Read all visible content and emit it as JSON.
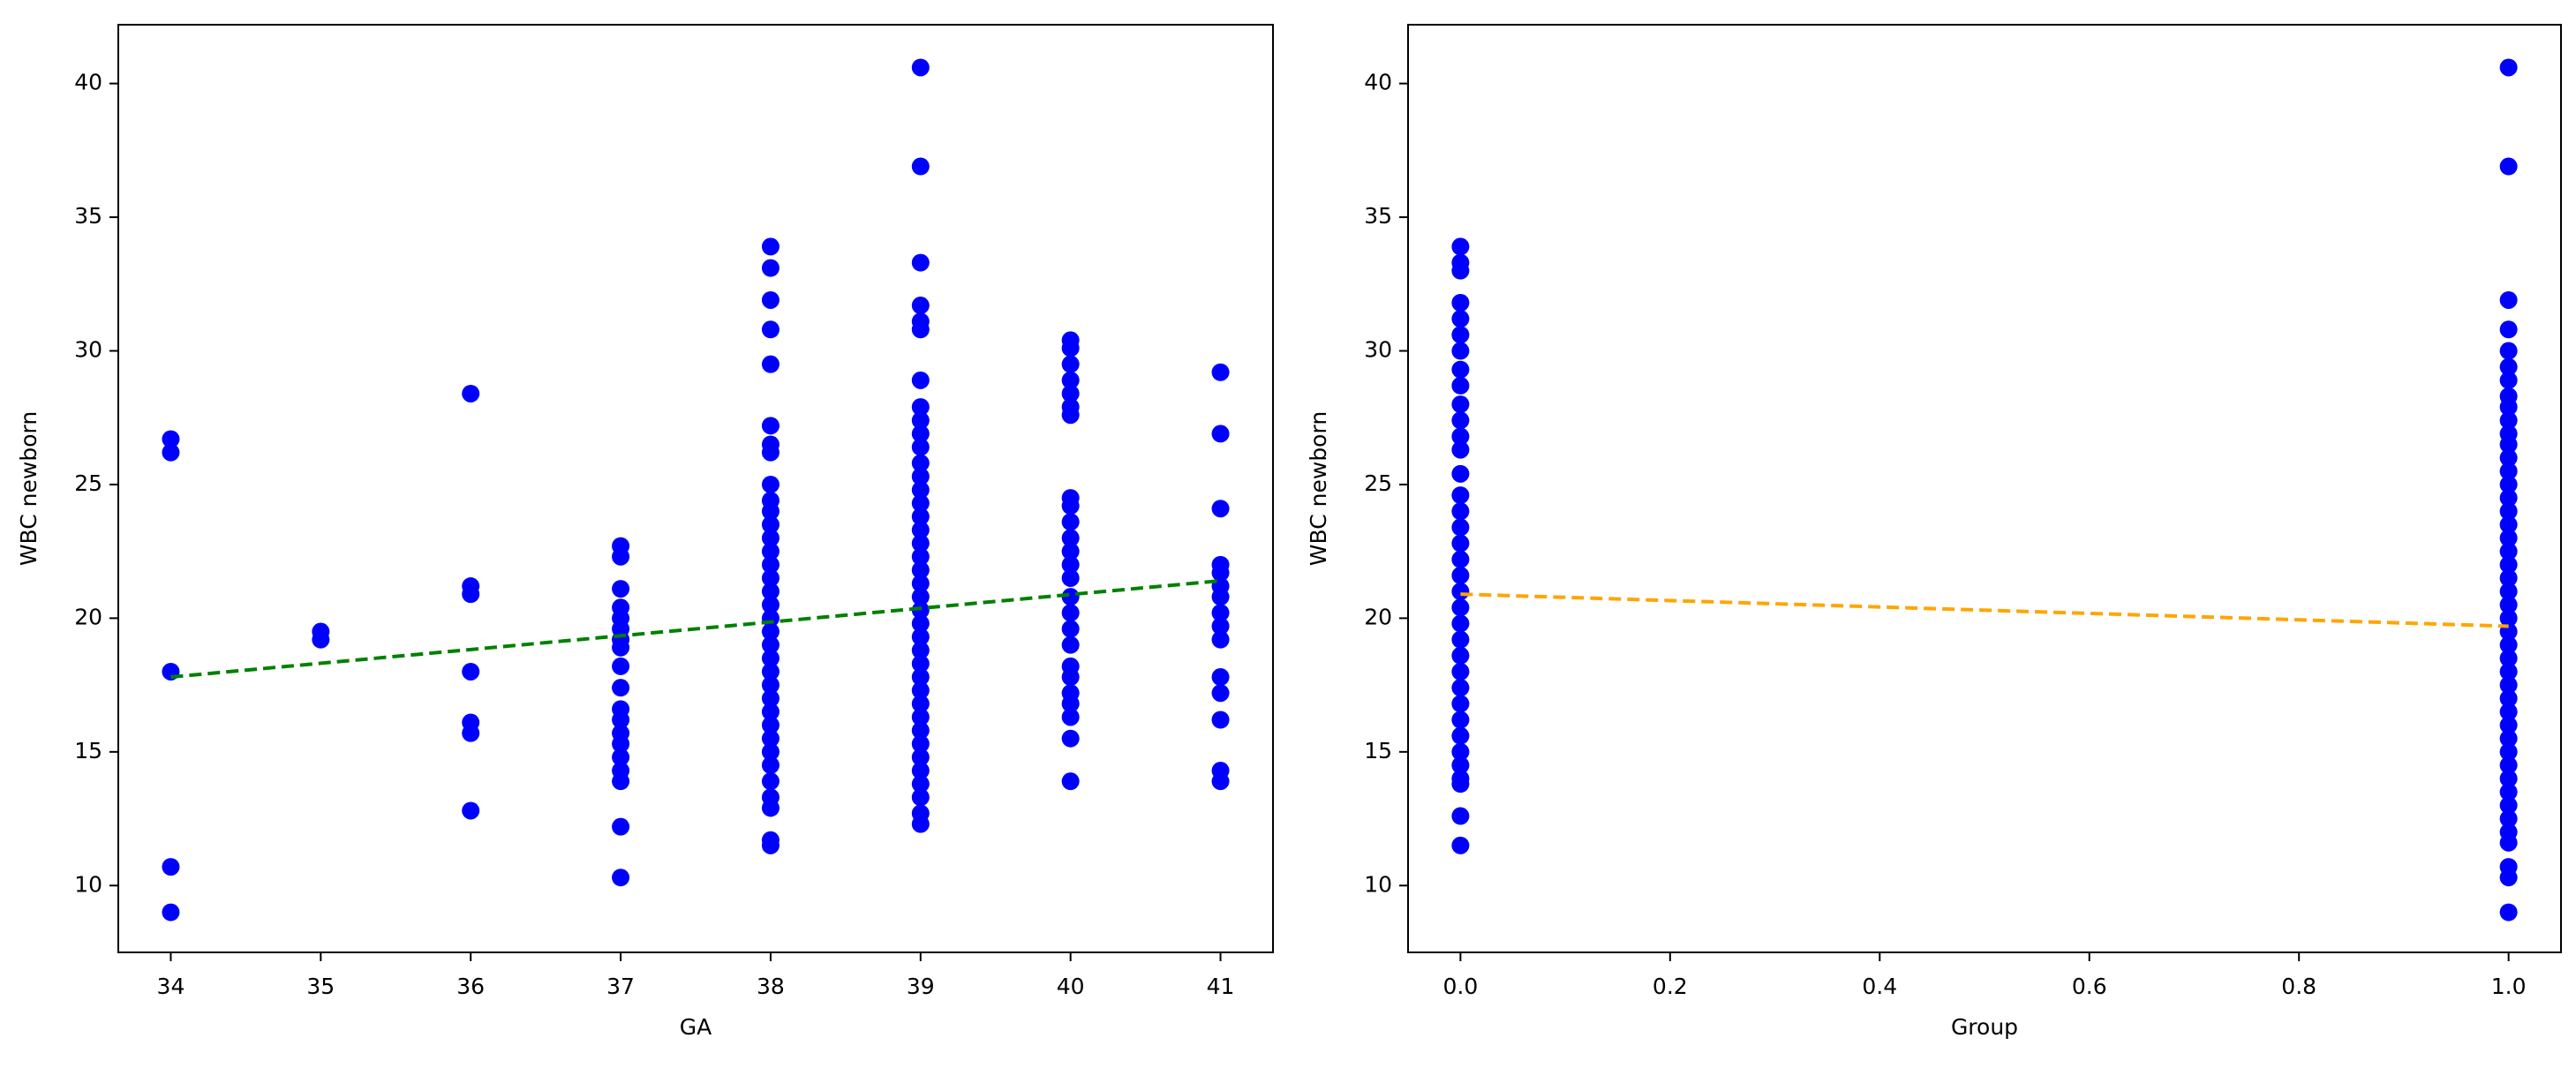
{
  "chart_data": [
    {
      "type": "scatter",
      "x_label": "GA",
      "y_label": "WBC newborn",
      "xlim": [
        33.65,
        41.35
      ],
      "ylim": [
        7.5,
        42.2
      ],
      "xticks": [
        34,
        35,
        36,
        37,
        38,
        39,
        40,
        41
      ],
      "yticks": [
        10,
        15,
        20,
        25,
        30,
        35,
        40
      ],
      "series": [
        {
          "color": "#0000ff",
          "mark": "points",
          "x": [
            34,
            34,
            34,
            34,
            34,
            35,
            35,
            36,
            36,
            36,
            36,
            36,
            36,
            36,
            37,
            37,
            37,
            37,
            37,
            37,
            37,
            37,
            37,
            37,
            37,
            37,
            37,
            37,
            37,
            37,
            37,
            37,
            37,
            38,
            38,
            38,
            38,
            38,
            38,
            38,
            38,
            38,
            38,
            38,
            38,
            38,
            38,
            38,
            38,
            38,
            38,
            38,
            38,
            38,
            38,
            38,
            38,
            38,
            38,
            38,
            38,
            38,
            38,
            38,
            38,
            38,
            38,
            38,
            39,
            39,
            39,
            39,
            39,
            39,
            39,
            39,
            39,
            39,
            39,
            39,
            39,
            39,
            39,
            39,
            39,
            39,
            39,
            39,
            39,
            39,
            39,
            39,
            39,
            39,
            39,
            39,
            39,
            39,
            39,
            39,
            39,
            39,
            39,
            39,
            39,
            39,
            39,
            40,
            40,
            40,
            40,
            40,
            40,
            40,
            40,
            40,
            40,
            40,
            40,
            40,
            40,
            40,
            40,
            40,
            40,
            40,
            40,
            40,
            40,
            40,
            40,
            40,
            41,
            41,
            41,
            41,
            41,
            41,
            41,
            41,
            41,
            41,
            41,
            41,
            41,
            41,
            41
          ],
          "values": [
            26.7,
            26.2,
            18.0,
            10.7,
            9.0,
            19.5,
            19.2,
            28.4,
            21.2,
            20.9,
            18.0,
            16.1,
            15.7,
            12.8,
            22.7,
            22.3,
            21.1,
            20.4,
            20.0,
            19.6,
            19.2,
            18.9,
            18.2,
            17.4,
            16.6,
            16.2,
            15.7,
            15.3,
            14.8,
            14.3,
            13.9,
            12.2,
            10.3,
            33.9,
            33.1,
            31.9,
            30.8,
            29.5,
            27.2,
            26.5,
            26.2,
            25.0,
            24.4,
            24.0,
            23.5,
            23.0,
            22.5,
            22.0,
            21.5,
            21.0,
            20.5,
            20.0,
            19.5,
            19.0,
            18.5,
            18.0,
            17.5,
            17.0,
            16.5,
            16.0,
            15.5,
            15.0,
            14.5,
            13.9,
            13.3,
            12.9,
            11.7,
            11.5,
            40.6,
            36.9,
            33.3,
            31.7,
            31.1,
            30.8,
            28.9,
            27.9,
            27.4,
            26.9,
            26.4,
            25.8,
            25.3,
            24.8,
            24.3,
            23.8,
            23.3,
            22.8,
            22.3,
            21.8,
            21.3,
            20.8,
            20.3,
            19.8,
            19.3,
            18.8,
            18.3,
            17.8,
            17.3,
            16.8,
            16.3,
            15.8,
            15.3,
            14.8,
            14.3,
            13.8,
            13.3,
            12.7,
            12.3,
            30.4,
            30.1,
            29.5,
            28.9,
            28.4,
            27.9,
            27.6,
            24.5,
            24.2,
            23.6,
            23.0,
            22.5,
            22.0,
            21.5,
            20.8,
            20.2,
            19.6,
            19.0,
            18.2,
            17.8,
            17.2,
            16.8,
            16.3,
            15.5,
            13.9,
            29.2,
            26.9,
            24.1,
            22.0,
            21.7,
            21.2,
            20.8,
            20.2,
            19.7,
            19.2,
            17.8,
            17.2,
            16.2,
            14.3,
            13.9
          ]
        },
        {
          "color": "#008000",
          "mark": "dashed-line",
          "x": [
            34,
            41
          ],
          "values": [
            17.8,
            21.4
          ]
        }
      ]
    },
    {
      "type": "scatter",
      "x_label": "Group",
      "y_label": "WBC newborn",
      "xlim": [
        -0.05,
        1.05
      ],
      "ylim": [
        7.5,
        42.2
      ],
      "xticks": [
        {
          "value": 0,
          "label": "0.0"
        },
        0.2,
        0.4,
        0.6,
        0.8,
        {
          "value": 1,
          "label": "1.0"
        }
      ],
      "yticks": [
        10,
        15,
        20,
        25,
        30,
        35,
        40
      ],
      "series": [
        {
          "color": "#0000ff",
          "mark": "points",
          "x": [
            0,
            0,
            0,
            0,
            0,
            0,
            0,
            0,
            0,
            0,
            0,
            0,
            0,
            0,
            0,
            0,
            0,
            0,
            0,
            0,
            0,
            0,
            0,
            0,
            0,
            0,
            0,
            0,
            0,
            0,
            0,
            0,
            0,
            0,
            0,
            0,
            1,
            1,
            1,
            1,
            1,
            1,
            1,
            1,
            1,
            1,
            1,
            1,
            1,
            1,
            1,
            1,
            1,
            1,
            1,
            1,
            1,
            1,
            1,
            1,
            1,
            1,
            1,
            1,
            1,
            1,
            1,
            1,
            1,
            1,
            1,
            1,
            1,
            1,
            1,
            1,
            1,
            1,
            1,
            1,
            1
          ],
          "values": [
            33.9,
            33.3,
            33.0,
            31.8,
            31.2,
            30.6,
            30.0,
            29.3,
            28.7,
            28.0,
            27.4,
            26.8,
            26.3,
            25.4,
            24.6,
            24.0,
            23.4,
            22.8,
            22.2,
            21.6,
            21.0,
            20.4,
            19.8,
            19.2,
            18.6,
            18.0,
            17.4,
            16.8,
            16.2,
            15.6,
            15.0,
            14.5,
            14.0,
            13.8,
            12.6,
            11.5,
            40.6,
            36.9,
            31.9,
            30.8,
            30.0,
            29.4,
            28.9,
            28.3,
            27.9,
            27.4,
            26.9,
            26.5,
            26.0,
            25.5,
            25.0,
            24.5,
            24.0,
            23.5,
            23.0,
            22.5,
            22.0,
            21.5,
            21.0,
            20.5,
            20.0,
            19.5,
            19.0,
            18.5,
            18.0,
            17.5,
            17.0,
            16.5,
            16.0,
            15.5,
            15.0,
            14.5,
            14.0,
            13.5,
            13.0,
            12.5,
            12.0,
            11.6,
            10.7,
            10.3,
            9.0
          ]
        },
        {
          "color": "#ffa500",
          "mark": "dashed-line",
          "x": [
            0,
            1
          ],
          "values": [
            20.9,
            19.7
          ]
        }
      ]
    }
  ]
}
